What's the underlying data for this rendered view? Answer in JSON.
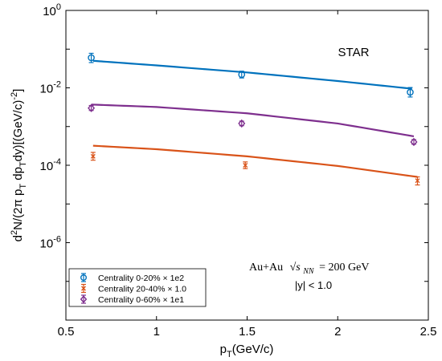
{
  "chart_data": {
    "type": "scatter",
    "title": "",
    "xlabel": "p_T(GeV/c)",
    "ylabel": "d^2N/(2π p_T dp_T dy)[(GeV/c)^-2]",
    "xlim": [
      0.5,
      2.5
    ],
    "ylim_log10": [
      -8,
      0
    ],
    "log_y": true,
    "grid": false,
    "legend_position": "bottom-left",
    "annotations": {
      "experiment": "STAR",
      "collision": "Au+Au",
      "energy_sym": "√s",
      "energy_sub": "NN",
      "energy_value": "= 200 GeV",
      "rapidity": "|y| < 1.0"
    },
    "x_ticks": [
      {
        "v": 0.5,
        "label": "0.5"
      },
      {
        "v": 1.0,
        "label": "1"
      },
      {
        "v": 1.5,
        "label": "1.5"
      },
      {
        "v": 2.0,
        "label": "2"
      },
      {
        "v": 2.5,
        "label": "2.5"
      }
    ],
    "y_ticks": [
      {
        "v": 0,
        "base": "10",
        "exp": "0"
      },
      {
        "v": -2,
        "base": "10",
        "exp": "-2"
      },
      {
        "v": -4,
        "base": "10",
        "exp": "-4"
      },
      {
        "v": -6,
        "base": "10",
        "exp": "-6"
      }
    ],
    "series": [
      {
        "name": "Centrality  0-20% × 1e2",
        "color": "#0072BD",
        "marker": "circle",
        "points": [
          {
            "x": 0.64,
            "y": 0.06,
            "err_low": 0.045,
            "err_high": 0.078
          },
          {
            "x": 1.47,
            "y": 0.022,
            "err_low": 0.018,
            "err_high": 0.027
          },
          {
            "x": 2.4,
            "y": 0.0077,
            "err_low": 0.0058,
            "err_high": 0.0102
          }
        ],
        "fit": [
          [
            0.65,
            0.05
          ],
          [
            1.0,
            0.038
          ],
          [
            1.5,
            0.025
          ],
          [
            2.0,
            0.015
          ],
          [
            2.41,
            0.0095
          ]
        ]
      },
      {
        "name": "Centrality 20-40% × 1.0",
        "color": "#D95319",
        "marker": "x",
        "points": [
          {
            "x": 0.65,
            "y": 0.00017,
            "err_low": 0.000135,
            "err_high": 0.000215
          },
          {
            "x": 1.49,
            "y": 0.0001,
            "err_low": 8.2e-05,
            "err_high": 0.000122
          },
          {
            "x": 2.44,
            "y": 4e-05,
            "err_low": 3.1e-05,
            "err_high": 5e-05
          }
        ],
        "fit": [
          [
            0.65,
            0.00032
          ],
          [
            1.0,
            0.00026
          ],
          [
            1.5,
            0.00017
          ],
          [
            2.0,
            9.6e-05
          ],
          [
            2.44,
            5e-05
          ]
        ]
      },
      {
        "name": "Centrality  0-60% × 1e1",
        "color": "#7E2F8E",
        "marker": "diamond",
        "points": [
          {
            "x": 0.64,
            "y": 0.003,
            "err_low": 0.0026,
            "err_high": 0.0035
          },
          {
            "x": 1.47,
            "y": 0.0012,
            "err_low": 0.00105,
            "err_high": 0.00138
          },
          {
            "x": 2.42,
            "y": 0.0004,
            "err_low": 0.00035,
            "err_high": 0.00046
          }
        ],
        "fit": [
          [
            0.64,
            0.0037
          ],
          [
            1.0,
            0.0032
          ],
          [
            1.5,
            0.0022
          ],
          [
            2.0,
            0.0012
          ],
          [
            2.42,
            0.00056
          ]
        ]
      }
    ]
  }
}
